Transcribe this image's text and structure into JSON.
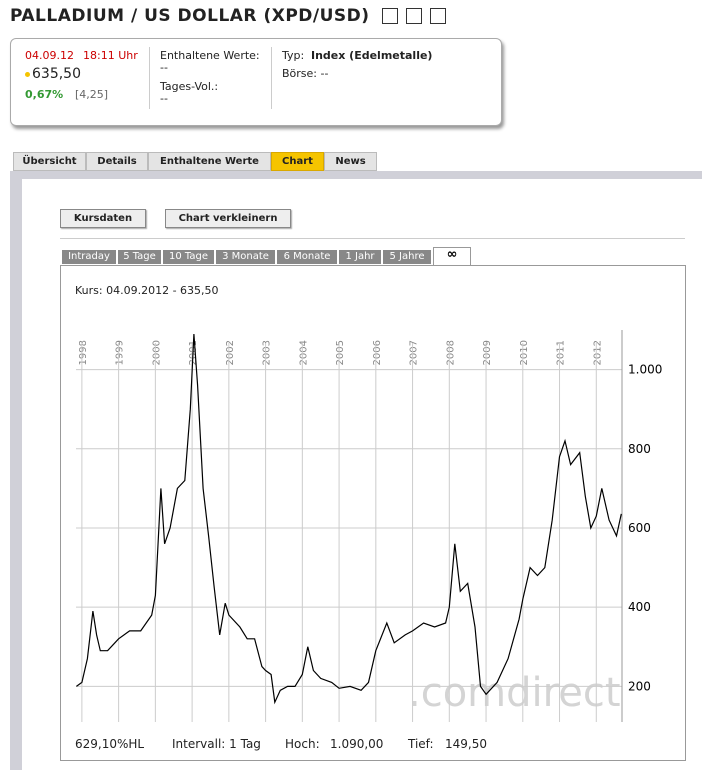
{
  "header": {
    "title": "PALLADIUM / US DOLLAR (XPD/USD)"
  },
  "quote": {
    "date": "04.09.12",
    "time": "18:11 Uhr",
    "price": "635,50",
    "change_pct": "0,67%",
    "change_abs": "[4,25]",
    "contained_label": "Enthaltene Werte:",
    "contained_value": "--",
    "volume_label": "Tages-Vol.:",
    "volume_value": "--",
    "type_label": "Typ:",
    "type_value": "Index (Edelmetalle)",
    "exchange": "Börse: --"
  },
  "tabs": [
    "Übersicht",
    "Details",
    "Enthaltene Werte",
    "Chart",
    "News"
  ],
  "buttons": [
    "Kursdaten",
    "Chart verkleinern"
  ],
  "range_tabs": [
    "Intraday",
    "5 Tage",
    "10 Tage",
    "3 Monate",
    "6 Monate",
    "1 Jahr",
    "5 Jahre",
    "∞"
  ],
  "chart_caption": "Kurs: 04.09.2012 - 635,50",
  "watermark": ".comdirect",
  "chart_data": {
    "type": "line",
    "color": "#000000",
    "grid": true,
    "x": [
      1997.85,
      1998.0,
      1998.15,
      1998.3,
      1998.4,
      1998.5,
      1998.7,
      1998.9,
      1999.0,
      1999.3,
      1999.6,
      1999.9,
      2000.0,
      2000.15,
      2000.25,
      2000.4,
      2000.6,
      2000.8,
      2000.95,
      2001.05,
      2001.15,
      2001.3,
      2001.45,
      2001.6,
      2001.75,
      2001.9,
      2002.0,
      2002.3,
      2002.5,
      2002.7,
      2002.9,
      2003.0,
      2003.15,
      2003.25,
      2003.4,
      2003.6,
      2003.8,
      2004.0,
      2004.15,
      2004.3,
      2004.5,
      2004.8,
      2005.0,
      2005.3,
      2005.6,
      2005.8,
      2006.0,
      2006.3,
      2006.5,
      2006.8,
      2007.0,
      2007.3,
      2007.6,
      2007.9,
      2008.0,
      2008.15,
      2008.3,
      2008.5,
      2008.7,
      2008.85,
      2009.0,
      2009.3,
      2009.6,
      2009.9,
      2010.0,
      2010.2,
      2010.4,
      2010.6,
      2010.8,
      2011.0,
      2011.15,
      2011.3,
      2011.55,
      2011.7,
      2011.85,
      2012.0,
      2012.15,
      2012.35,
      2012.55,
      2012.68
    ],
    "values": [
      200,
      210,
      270,
      390,
      330,
      290,
      290,
      310,
      320,
      340,
      340,
      380,
      430,
      700,
      560,
      600,
      700,
      720,
      900,
      1090,
      960,
      700,
      580,
      450,
      330,
      410,
      380,
      350,
      320,
      320,
      250,
      240,
      230,
      160,
      190,
      200,
      200,
      230,
      300,
      240,
      220,
      210,
      195,
      200,
      190,
      210,
      290,
      360,
      310,
      330,
      340,
      360,
      350,
      360,
      400,
      560,
      440,
      460,
      350,
      200,
      180,
      210,
      270,
      370,
      420,
      500,
      480,
      500,
      620,
      780,
      820,
      760,
      790,
      680,
      600,
      630,
      700,
      620,
      580,
      635.5
    ],
    "xlim": [
      1997.84,
      2012.7
    ],
    "xticks": [
      1998,
      1999,
      2000,
      2001,
      2002,
      2003,
      2004,
      2005,
      2006,
      2007,
      2008,
      2009,
      2010,
      2011,
      2012
    ],
    "ylim": [
      110,
      1100
    ],
    "yticks": [
      {
        "value": 1000,
        "label": "1.000"
      },
      800,
      600,
      400,
      200
    ]
  },
  "stats": {
    "hl": "629,10%HL",
    "interval": "Intervall: 1 Tag",
    "high_label": "Hoch:",
    "high": "1.090,00",
    "low_label": "Tief:",
    "low": "149,50"
  }
}
